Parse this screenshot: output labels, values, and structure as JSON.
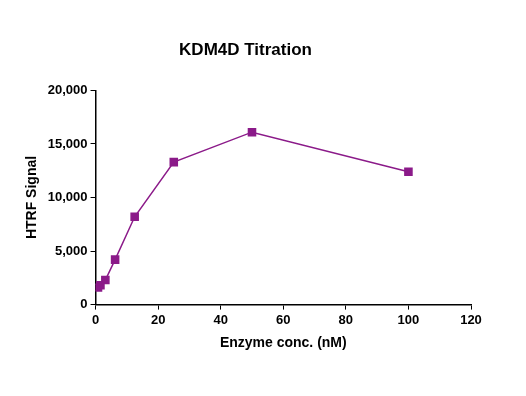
{
  "chart_data": {
    "type": "line",
    "title": "KDM4D Titration",
    "x_label": "Enzyme conc. (nM)",
    "y_label": "HTRF Signal",
    "x": [
      0.78,
      1.56,
      3.13,
      6.25,
      12.5,
      25,
      50,
      100
    ],
    "values": [
      1600,
      1800,
      2300,
      4200,
      8200,
      13300,
      16100,
      12400
    ],
    "color": "#8b1a89",
    "marker": "square",
    "line_style": "solid",
    "xlim": [
      0,
      120
    ],
    "xticks": [
      0,
      20,
      40,
      60,
      80,
      100,
      120
    ],
    "ylim": [
      0,
      20000
    ],
    "yticks": [
      0,
      5000,
      10000,
      15000,
      20000
    ],
    "grid": false
  }
}
